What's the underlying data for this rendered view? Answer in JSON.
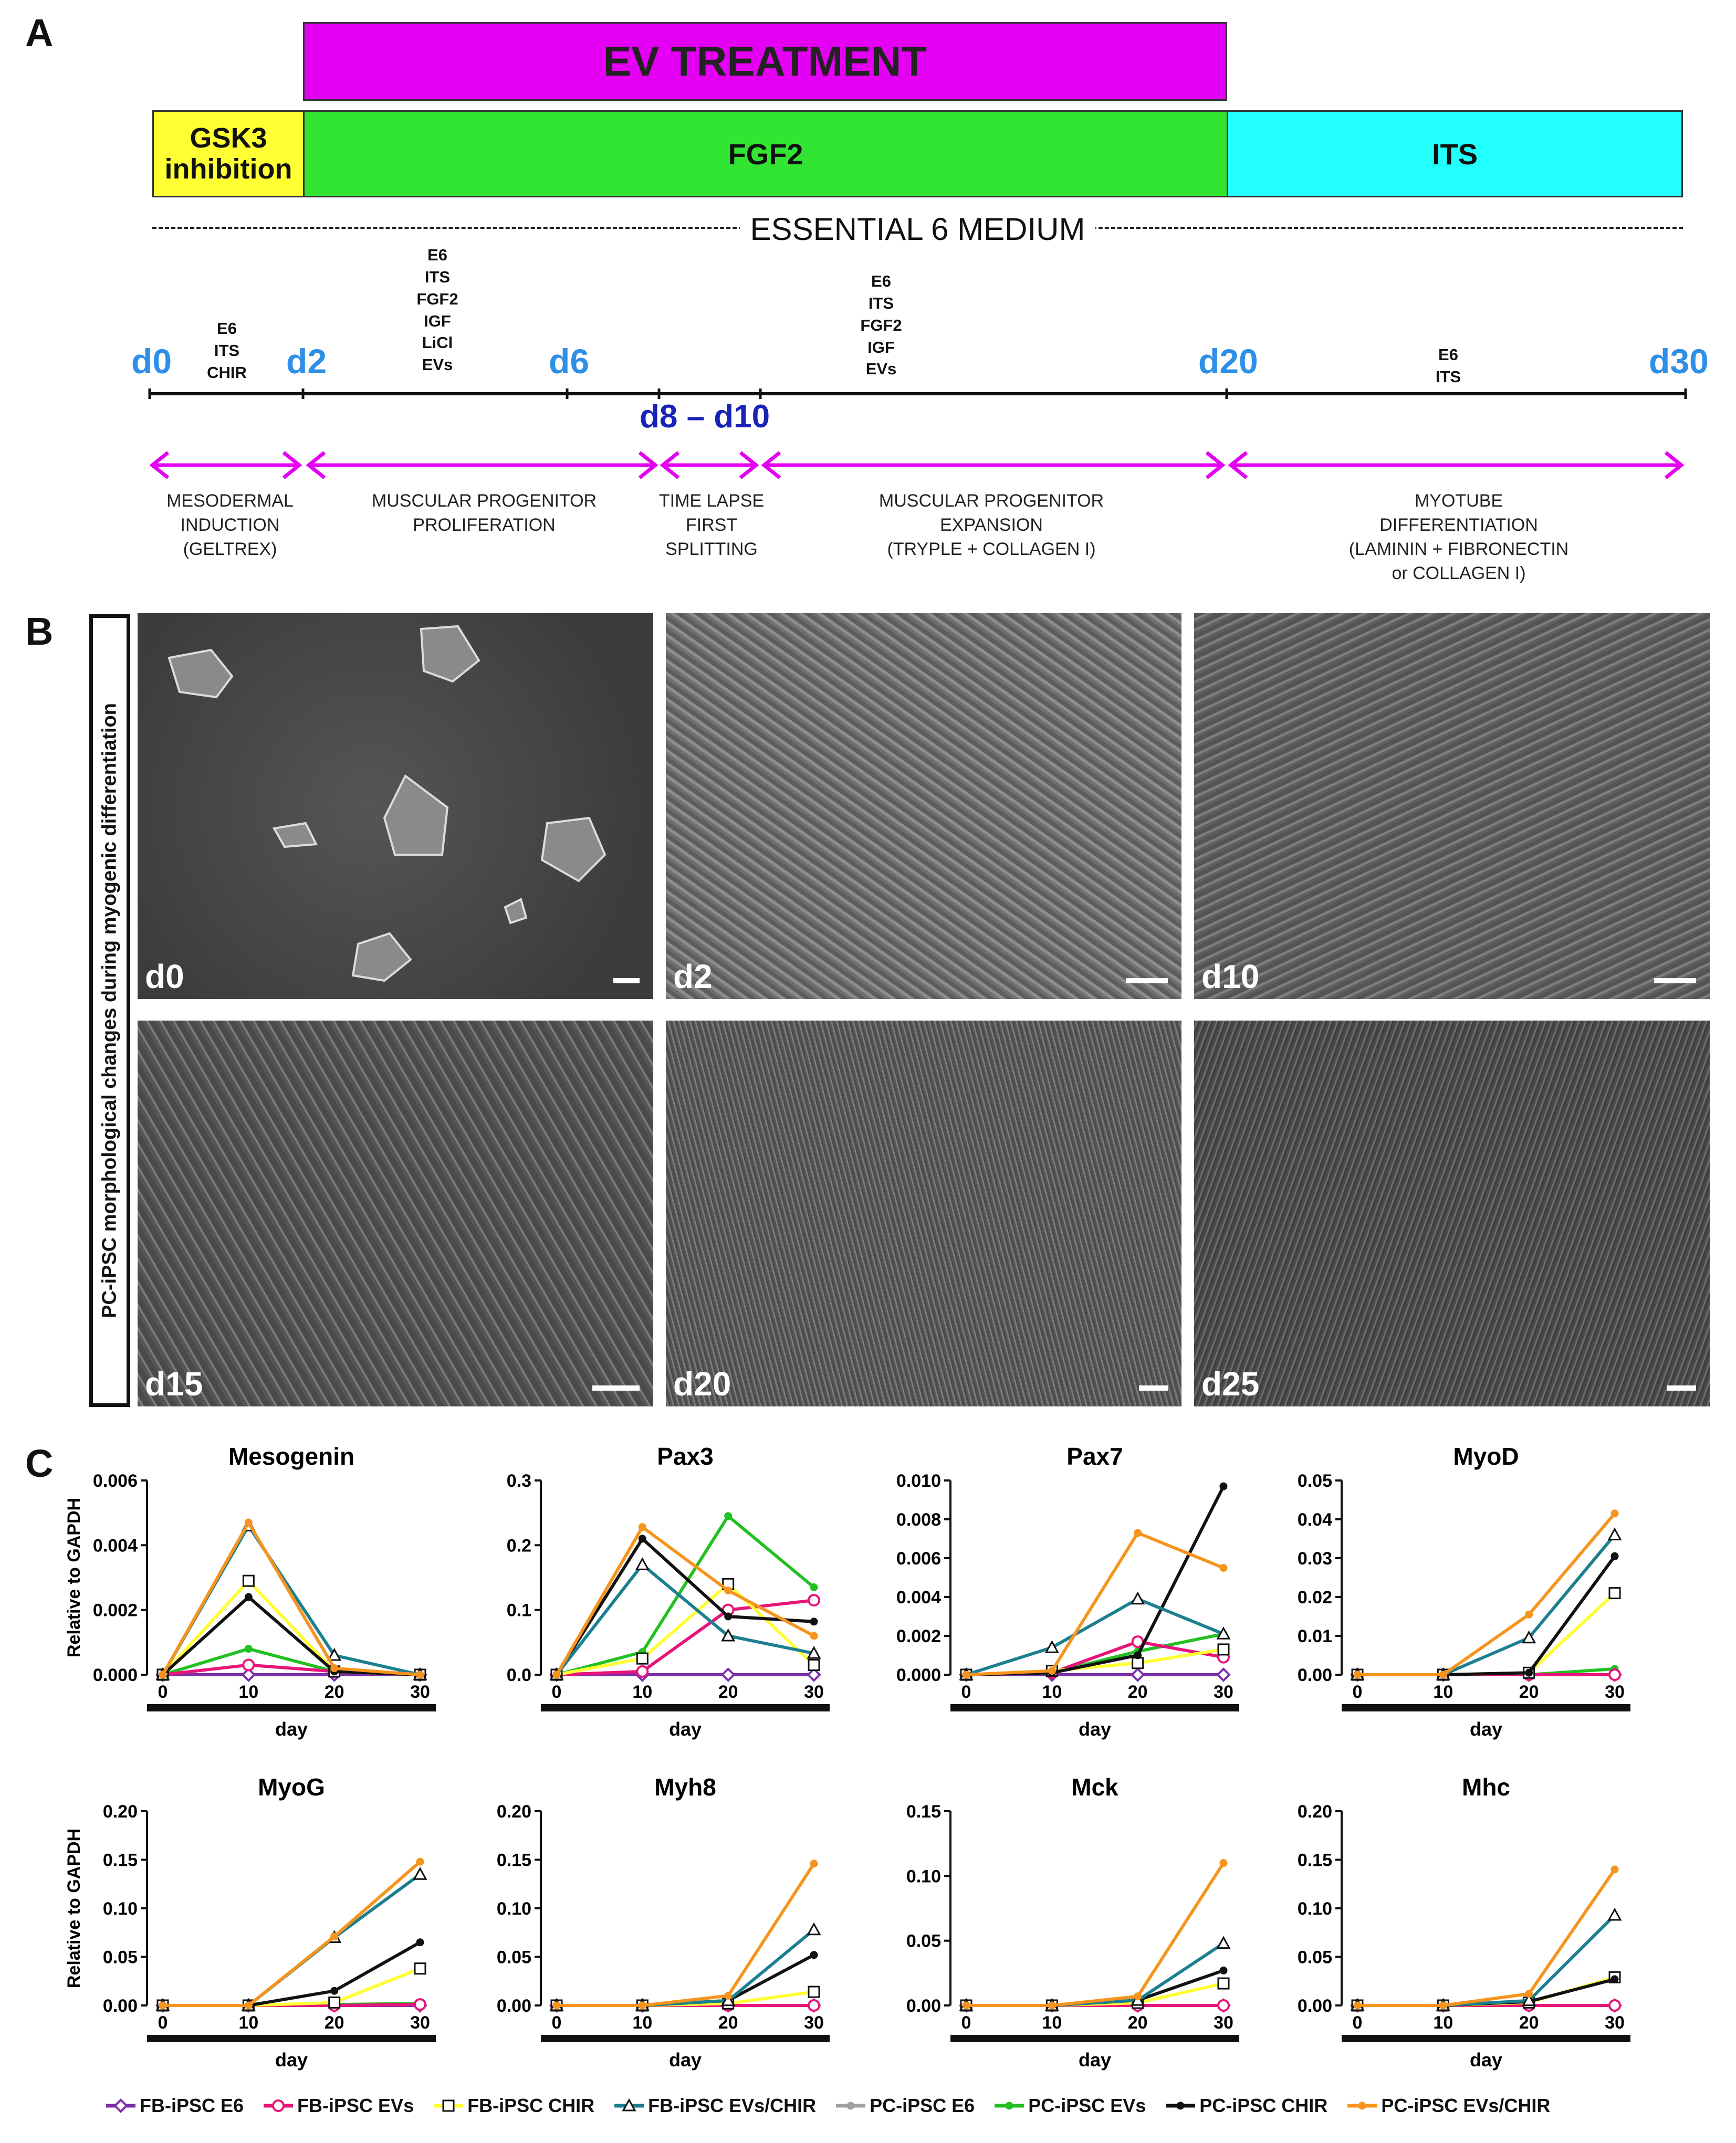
{
  "panels": {
    "a": "A",
    "b": "B",
    "c": "C"
  },
  "timeline": {
    "ev_treatment": "EV TREATMENT",
    "gsk3": "GSK3\ninhibition",
    "fgf2": "FGF2",
    "its": "ITS",
    "medium": "ESSENTIAL 6 MEDIUM",
    "days": {
      "d0": "d0",
      "d2": "d2",
      "d6": "d6",
      "d20": "d20",
      "d30": "d30",
      "d8_d10": "d8 – d10"
    },
    "media": {
      "m1": "E6\nITS\nCHIR",
      "m2": "E6\nITS\nFGF2\nIGF\nLiCl\nEVs",
      "m3": "E6\nITS\nFGF2\nIGF\nEVs",
      "m4": "E6\nITS"
    },
    "phases": {
      "p1": "MESODERMAL\nINDUCTION\n(GELTREX)",
      "p2": "MUSCULAR PROGENITOR\nPROLIFERATION",
      "p3": "TIME LAPSE\nFIRST\nSPLITTING",
      "p4": "MUSCULAR PROGENITOR\nEXPANSION\n(TRYPLE + COLLAGEN I)",
      "p5": "MYOTUBE\nDIFFERENTIATION\n(LAMININ + FIBRONECTIN\nor COLLAGEN I)"
    }
  },
  "micrographs": {
    "side_label": "PC-iPSC morphological changes during myogenic differentiation",
    "labels": [
      "d0",
      "d2",
      "d10",
      "d15",
      "d20",
      "d25"
    ]
  },
  "colors": {
    "FB-iPSC E6": "#7b2fa8",
    "FB-iPSC EVs": "#e8147a",
    "FB-iPSC CHIR": "#ffff33",
    "FB-iPSC EVs/CHIR": "#1c7f8f",
    "PC-iPSC E6": "#a0a0a0",
    "PC-iPSC EVs": "#22c022",
    "PC-iPSC CHIR": "#111111",
    "PC-iPSC EVs/CHIR": "#f7941d",
    "magenta_bar": "#e400f2",
    "green_bar": "#33e533",
    "yellow_bar": "#ffff33",
    "cyan_bar": "#22ffff",
    "day_blue": "#2e8fe8",
    "day_dark": "#1a22b8"
  },
  "legend": [
    "FB-iPSC E6",
    "FB-iPSC EVs",
    "FB-iPSC CHIR",
    "FB-iPSC EVs/CHIR",
    "PC-iPSC E6",
    "PC-iPSC EVs",
    "PC-iPSC CHIR",
    "PC-iPSC EVs/CHIR"
  ],
  "chart_data": [
    {
      "type": "line",
      "title": "Mesogenin",
      "ylabel": "Relative to GAPDH",
      "xlabel": "day",
      "x": [
        0,
        10,
        20,
        30
      ],
      "xticks": [
        "0",
        "10",
        "20",
        "30"
      ],
      "ylim": [
        0,
        0.006
      ],
      "yticks": [
        "0.000",
        "0.002",
        "0.004",
        "0.006"
      ],
      "series": [
        {
          "name": "FB-iPSC E6",
          "values": [
            0,
            0,
            0,
            0
          ]
        },
        {
          "name": "FB-iPSC EVs",
          "values": [
            0,
            0.0003,
            0.0001,
            0
          ]
        },
        {
          "name": "FB-iPSC CHIR",
          "values": [
            0,
            0.0029,
            0.0001,
            0
          ]
        },
        {
          "name": "FB-iPSC EVs/CHIR",
          "values": [
            0,
            0.0046,
            0.0006,
            0
          ]
        },
        {
          "name": "PC-iPSC E6",
          "values": [
            0,
            0,
            0,
            0
          ]
        },
        {
          "name": "PC-iPSC EVs",
          "values": [
            0,
            0.0008,
            0.0001,
            0
          ]
        },
        {
          "name": "PC-iPSC CHIR",
          "values": [
            0,
            0.0024,
            0.0001,
            0
          ]
        },
        {
          "name": "PC-iPSC EVs/CHIR",
          "values": [
            0,
            0.0047,
            0.0002,
            0
          ]
        }
      ]
    },
    {
      "type": "line",
      "title": "Pax3",
      "ylabel": "",
      "xlabel": "day",
      "x": [
        0,
        10,
        20,
        30
      ],
      "xticks": [
        "0",
        "10",
        "20",
        "30"
      ],
      "ylim": [
        0,
        0.3
      ],
      "yticks": [
        "0.0",
        "0.1",
        "0.2",
        "0.3"
      ],
      "series": [
        {
          "name": "FB-iPSC E6",
          "values": [
            0,
            0,
            0,
            0
          ]
        },
        {
          "name": "FB-iPSC EVs",
          "values": [
            0,
            0.005,
            0.1,
            0.115
          ]
        },
        {
          "name": "FB-iPSC CHIR",
          "values": [
            0,
            0.025,
            0.14,
            0.015
          ]
        },
        {
          "name": "FB-iPSC EVs/CHIR",
          "values": [
            0,
            0.17,
            0.06,
            0.033
          ]
        },
        {
          "name": "PC-iPSC E6",
          "values": [
            0,
            0,
            0,
            0
          ]
        },
        {
          "name": "PC-iPSC EVs",
          "values": [
            0,
            0.035,
            0.245,
            0.135
          ]
        },
        {
          "name": "PC-iPSC CHIR",
          "values": [
            0,
            0.21,
            0.09,
            0.082
          ]
        },
        {
          "name": "PC-iPSC EVs/CHIR",
          "values": [
            0,
            0.228,
            0.13,
            0.06
          ]
        }
      ]
    },
    {
      "type": "line",
      "title": "Pax7",
      "ylabel": "",
      "xlabel": "day",
      "x": [
        0,
        10,
        20,
        30
      ],
      "xticks": [
        "0",
        "10",
        "20",
        "30"
      ],
      "ylim": [
        0,
        0.01
      ],
      "yticks": [
        "0.000",
        "0.002",
        "0.004",
        "0.006",
        "0.008",
        "0.010"
      ],
      "series": [
        {
          "name": "FB-iPSC E6",
          "values": [
            0,
            0,
            0,
            0
          ]
        },
        {
          "name": "FB-iPSC EVs",
          "values": [
            0,
            0.0001,
            0.0017,
            0.0009
          ]
        },
        {
          "name": "FB-iPSC CHIR",
          "values": [
            0,
            0.0002,
            0.0006,
            0.0013
          ]
        },
        {
          "name": "FB-iPSC EVs/CHIR",
          "values": [
            0,
            0.0014,
            0.0039,
            0.0021
          ]
        },
        {
          "name": "PC-iPSC E6",
          "values": [
            0,
            0,
            0,
            0
          ]
        },
        {
          "name": "PC-iPSC EVs",
          "values": [
            0,
            0.0001,
            0.0012,
            0.0021
          ]
        },
        {
          "name": "PC-iPSC CHIR",
          "values": [
            0,
            0.0001,
            0.001,
            0.0097
          ]
        },
        {
          "name": "PC-iPSC EVs/CHIR",
          "values": [
            0,
            0.0002,
            0.0073,
            0.0055
          ]
        }
      ]
    },
    {
      "type": "line",
      "title": "MyoD",
      "ylabel": "",
      "xlabel": "day",
      "x": [
        0,
        10,
        20,
        30
      ],
      "xticks": [
        "0",
        "10",
        "20",
        "30"
      ],
      "ylim": [
        0,
        0.05
      ],
      "yticks": [
        "0.00",
        "0.01",
        "0.02",
        "0.03",
        "0.04",
        "0.05"
      ],
      "series": [
        {
          "name": "FB-iPSC E6",
          "values": [
            0,
            0,
            0,
            0
          ]
        },
        {
          "name": "FB-iPSC EVs",
          "values": [
            0,
            0,
            0,
            0
          ]
        },
        {
          "name": "FB-iPSC CHIR",
          "values": [
            0,
            0,
            0.0005,
            0.021
          ]
        },
        {
          "name": "FB-iPSC EVs/CHIR",
          "values": [
            0,
            0,
            0.0095,
            0.036
          ]
        },
        {
          "name": "PC-iPSC E6",
          "values": [
            0,
            0,
            0,
            0
          ]
        },
        {
          "name": "PC-iPSC EVs",
          "values": [
            0,
            0,
            0,
            0.0015
          ]
        },
        {
          "name": "PC-iPSC CHIR",
          "values": [
            0,
            0,
            0.0005,
            0.0305
          ]
        },
        {
          "name": "PC-iPSC EVs/CHIR",
          "values": [
            0,
            0,
            0.0155,
            0.0415
          ]
        }
      ]
    },
    {
      "type": "line",
      "title": "MyoG",
      "ylabel": "Relative to GAPDH",
      "xlabel": "day",
      "x": [
        0,
        10,
        20,
        30
      ],
      "xticks": [
        "0",
        "10",
        "20",
        "30"
      ],
      "ylim": [
        0,
        0.2
      ],
      "yticks": [
        "0.00",
        "0.05",
        "0.10",
        "0.15",
        "0.20"
      ],
      "series": [
        {
          "name": "FB-iPSC E6",
          "values": [
            0,
            0,
            0,
            0
          ]
        },
        {
          "name": "FB-iPSC EVs",
          "values": [
            0,
            0,
            0,
            0.001
          ]
        },
        {
          "name": "FB-iPSC CHIR",
          "values": [
            0,
            0,
            0.003,
            0.038
          ]
        },
        {
          "name": "FB-iPSC EVs/CHIR",
          "values": [
            0,
            0,
            0.07,
            0.135
          ]
        },
        {
          "name": "PC-iPSC E6",
          "values": [
            0,
            0,
            0,
            0
          ]
        },
        {
          "name": "PC-iPSC EVs",
          "values": [
            0,
            0,
            0.001,
            0.002
          ]
        },
        {
          "name": "PC-iPSC CHIR",
          "values": [
            0,
            0,
            0.015,
            0.065
          ]
        },
        {
          "name": "PC-iPSC EVs/CHIR",
          "values": [
            0,
            0,
            0.071,
            0.148
          ]
        }
      ]
    },
    {
      "type": "line",
      "title": "Myh8",
      "ylabel": "",
      "xlabel": "day",
      "x": [
        0,
        10,
        20,
        30
      ],
      "xticks": [
        "0",
        "10",
        "20",
        "30"
      ],
      "ylim": [
        0,
        0.2
      ],
      "yticks": [
        "0.00",
        "0.05",
        "0.10",
        "0.15",
        "0.20"
      ],
      "series": [
        {
          "name": "FB-iPSC E6",
          "values": [
            0,
            0,
            0,
            0
          ]
        },
        {
          "name": "FB-iPSC EVs",
          "values": [
            0,
            0,
            0,
            0
          ]
        },
        {
          "name": "FB-iPSC CHIR",
          "values": [
            0,
            0,
            0.002,
            0.014
          ]
        },
        {
          "name": "FB-iPSC EVs/CHIR",
          "values": [
            0,
            0,
            0.005,
            0.078
          ]
        },
        {
          "name": "PC-iPSC E6",
          "values": [
            0,
            0,
            0,
            0
          ]
        },
        {
          "name": "PC-iPSC EVs",
          "values": [
            0,
            0,
            0,
            0
          ]
        },
        {
          "name": "PC-iPSC CHIR",
          "values": [
            0,
            0,
            0.005,
            0.052
          ]
        },
        {
          "name": "PC-iPSC EVs/CHIR",
          "values": [
            0,
            0,
            0.01,
            0.146
          ]
        }
      ]
    },
    {
      "type": "line",
      "title": "Mck",
      "ylabel": "",
      "xlabel": "day",
      "x": [
        0,
        10,
        20,
        30
      ],
      "xticks": [
        "0",
        "10",
        "20",
        "30"
      ],
      "ylim": [
        0,
        0.15
      ],
      "yticks": [
        "0.00",
        "0.05",
        "0.10",
        "0.15"
      ],
      "series": [
        {
          "name": "FB-iPSC E6",
          "values": [
            0,
            0,
            0,
            0
          ]
        },
        {
          "name": "FB-iPSC EVs",
          "values": [
            0,
            0,
            0,
            0
          ]
        },
        {
          "name": "FB-iPSC CHIR",
          "values": [
            0,
            0,
            0.002,
            0.017
          ]
        },
        {
          "name": "FB-iPSC EVs/CHIR",
          "values": [
            0,
            0,
            0.004,
            0.048
          ]
        },
        {
          "name": "PC-iPSC E6",
          "values": [
            0,
            0,
            0,
            0
          ]
        },
        {
          "name": "PC-iPSC EVs",
          "values": [
            0,
            0,
            0,
            0
          ]
        },
        {
          "name": "PC-iPSC CHIR",
          "values": [
            0,
            0,
            0.004,
            0.027
          ]
        },
        {
          "name": "PC-iPSC EVs/CHIR",
          "values": [
            0,
            0,
            0.007,
            0.11
          ]
        }
      ]
    },
    {
      "type": "line",
      "title": "Mhc",
      "ylabel": "",
      "xlabel": "day",
      "x": [
        0,
        10,
        20,
        30
      ],
      "xticks": [
        "0",
        "10",
        "20",
        "30"
      ],
      "ylim": [
        0,
        0.2
      ],
      "yticks": [
        "0.00",
        "0.05",
        "0.10",
        "0.15",
        "0.20"
      ],
      "series": [
        {
          "name": "FB-iPSC E6",
          "values": [
            0,
            0,
            0,
            0
          ]
        },
        {
          "name": "FB-iPSC EVs",
          "values": [
            0,
            0,
            0,
            0
          ]
        },
        {
          "name": "FB-iPSC CHIR",
          "values": [
            0,
            0,
            0.003,
            0.029
          ]
        },
        {
          "name": "FB-iPSC EVs/CHIR",
          "values": [
            0,
            0,
            0.005,
            0.093
          ]
        },
        {
          "name": "PC-iPSC E6",
          "values": [
            0,
            0,
            0,
            0
          ]
        },
        {
          "name": "PC-iPSC EVs",
          "values": [
            0,
            0,
            0,
            0
          ]
        },
        {
          "name": "PC-iPSC CHIR",
          "values": [
            0,
            0,
            0.004,
            0.027
          ]
        },
        {
          "name": "PC-iPSC EVs/CHIR",
          "values": [
            0,
            0,
            0.012,
            0.14
          ]
        }
      ]
    }
  ]
}
